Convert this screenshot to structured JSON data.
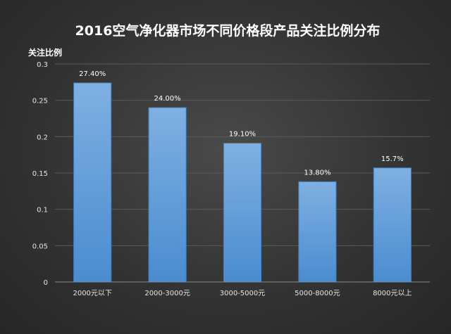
{
  "chart_data": {
    "type": "bar",
    "title": "2016空气净化器市场不同价格段产品关注比例分布",
    "ylabel": "关注比例",
    "xlabel": "",
    "categories": [
      "2000元以下",
      "2000-3000元",
      "3000-5000元",
      "5000-8000元",
      "8000元以上"
    ],
    "values": [
      0.274,
      0.24,
      0.191,
      0.138,
      0.157
    ],
    "data_labels": [
      "27.40%",
      "24.00%",
      "19.10%",
      "13.80%",
      "15.7%"
    ],
    "ylim": [
      0,
      0.3
    ],
    "yticks": [
      0,
      0.05,
      0.1,
      0.15,
      0.2,
      0.25,
      0.3
    ],
    "ytick_labels": [
      "0",
      "0.05",
      "0.1",
      "0.15",
      "0.2",
      "0.25",
      "0.3"
    ],
    "grid": true,
    "legend": "none",
    "colors": {
      "bar_top": "#7fb0e2",
      "bar_bottom": "#4a8cd0",
      "bar_edge": "#3c7cc0"
    }
  }
}
